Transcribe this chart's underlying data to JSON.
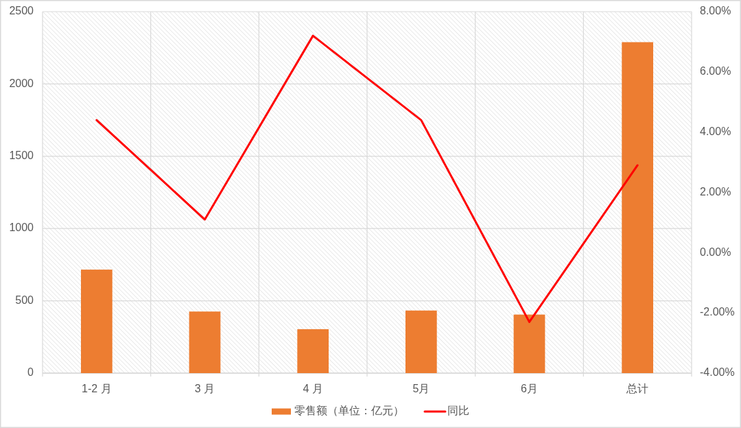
{
  "chart_data": {
    "type": "bar",
    "categories": [
      "1-2 月",
      "3 月",
      "4 月",
      "5月",
      "6月",
      "总计"
    ],
    "series": [
      {
        "name": "零售额（单位：亿元）",
        "color": "#ed7d31",
        "values": [
          716,
          426,
          304,
          433,
          405,
          2289
        ]
      },
      {
        "name": "同比",
        "type": "line",
        "axis": "y2",
        "color": "#ff0000",
        "values": [
          4.4,
          1.1,
          7.2,
          4.4,
          -2.3,
          2.9
        ]
      }
    ],
    "ylim": [
      0,
      2500
    ],
    "yticks": [
      0,
      500,
      1000,
      1500,
      2000,
      2500
    ],
    "y2lim": [
      -4,
      8
    ],
    "y2ticks": [
      {
        "value": -4,
        "label": "-4.00%"
      },
      {
        "value": -2,
        "label": "-2.00%"
      },
      {
        "value": 0,
        "label": "0.00%"
      },
      {
        "value": 2,
        "label": "2.00%"
      },
      {
        "value": 4,
        "label": "4.00%"
      },
      {
        "value": 6,
        "label": "6.00%"
      },
      {
        "value": 8,
        "label": "8.00%"
      }
    ],
    "grid": true,
    "legend": "bottom"
  }
}
